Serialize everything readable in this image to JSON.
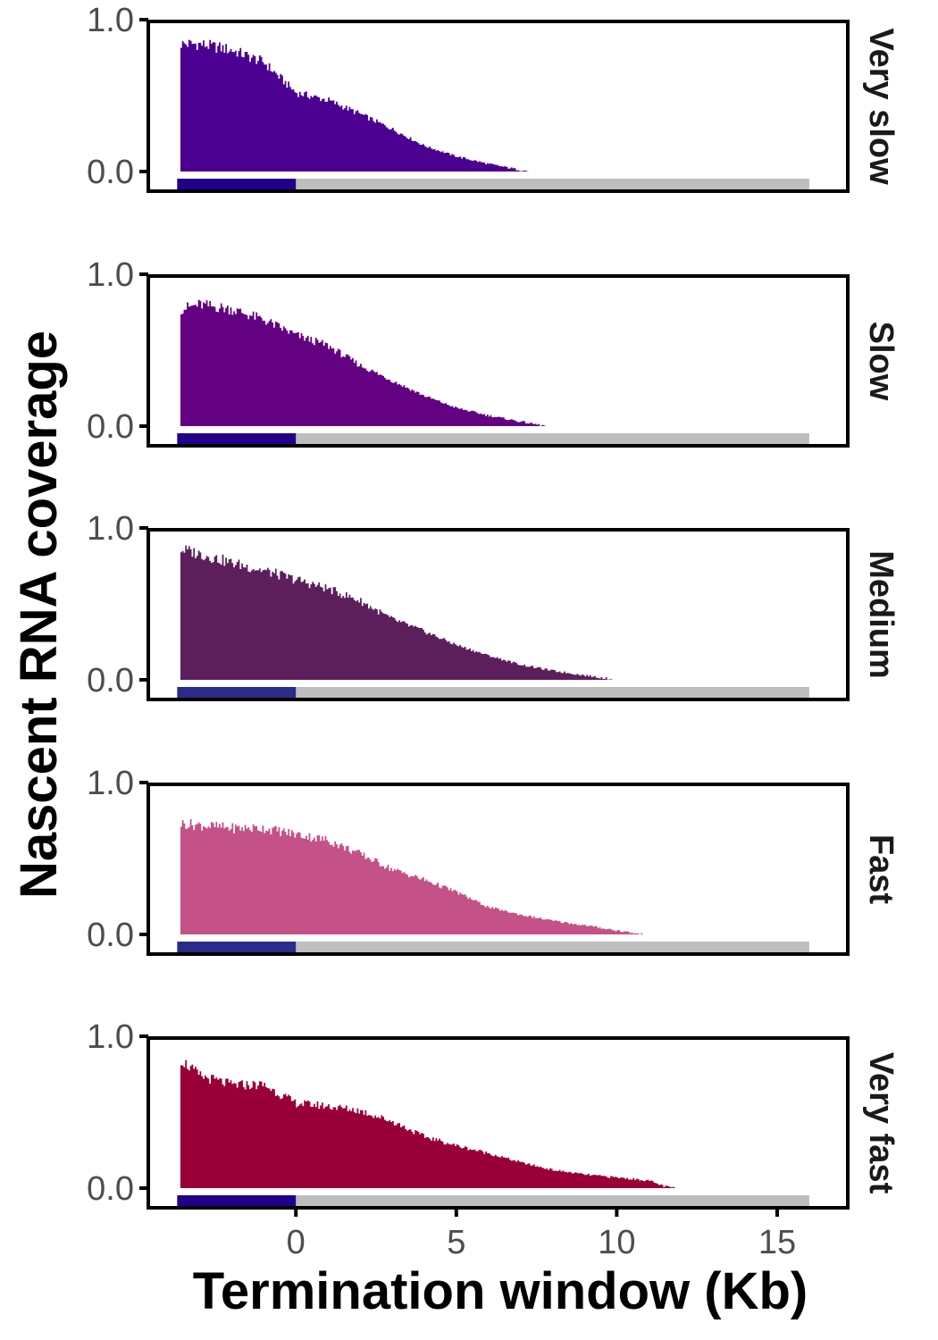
{
  "chart_data": {
    "type": "area",
    "title": "",
    "xlabel": "Termination window (Kb)",
    "ylabel": "Nascent RNA coverage",
    "xlim": [
      -4.6,
      17.2
    ],
    "ylim": [
      -0.12,
      1.0
    ],
    "x_ticks": [
      0,
      5,
      10,
      15
    ],
    "x_tick_labels": [
      "0",
      "5",
      "10",
      "15"
    ],
    "y_ticks": [
      0,
      1
    ],
    "y_tick_labels": [
      "0.0",
      "1.0"
    ],
    "grid": false,
    "legend": "none",
    "gene_body_bar": {
      "gene_region": [
        -3.7,
        0
      ],
      "termination_region": [
        0,
        16
      ],
      "termination_color": "#bebebe"
    },
    "panels": [
      {
        "label": "Very slow",
        "color": "#4b0092",
        "gene_bar_color": "#21008a",
        "x": [
          -3.6,
          -3.0,
          -2.0,
          -1.0,
          0.0,
          1.0,
          2.0,
          3.0,
          4.0,
          5.0,
          6.0,
          7.0,
          7.3
        ],
        "y": [
          0.84,
          0.84,
          0.8,
          0.72,
          0.52,
          0.47,
          0.38,
          0.28,
          0.17,
          0.1,
          0.05,
          0.01,
          0.0
        ]
      },
      {
        "label": "Slow",
        "color": "#640082",
        "gene_bar_color": "#21008a",
        "x": [
          -3.6,
          -3.0,
          -2.0,
          -1.0,
          0.0,
          1.0,
          2.0,
          3.0,
          4.0,
          5.0,
          6.0,
          7.0,
          7.8
        ],
        "y": [
          0.77,
          0.8,
          0.77,
          0.7,
          0.6,
          0.53,
          0.4,
          0.3,
          0.2,
          0.12,
          0.07,
          0.03,
          0.0
        ]
      },
      {
        "label": "Medium",
        "color": "#5c1f5c",
        "gene_bar_color": "#2b2b8c",
        "x": [
          -3.6,
          -3.0,
          -2.0,
          -1.0,
          0.0,
          1.0,
          2.0,
          3.0,
          4.0,
          5.0,
          6.0,
          7.0,
          8.0,
          9.0,
          10.0
        ],
        "y": [
          0.86,
          0.83,
          0.77,
          0.72,
          0.66,
          0.6,
          0.52,
          0.4,
          0.32,
          0.23,
          0.16,
          0.1,
          0.06,
          0.03,
          0.0
        ]
      },
      {
        "label": "Fast",
        "color": "#c55189",
        "gene_bar_color": "#2b2b8c",
        "x": [
          -3.6,
          -3.0,
          -2.0,
          -1.0,
          0.0,
          1.0,
          2.0,
          3.0,
          4.0,
          5.0,
          6.0,
          7.0,
          8.0,
          9.0,
          10.2,
          10.8
        ],
        "y": [
          0.73,
          0.72,
          0.7,
          0.7,
          0.66,
          0.62,
          0.53,
          0.43,
          0.36,
          0.28,
          0.18,
          0.13,
          0.09,
          0.06,
          0.02,
          0.0
        ]
      },
      {
        "label": "Very fast",
        "color": "#990038",
        "gene_bar_color": "#21008a",
        "x": [
          -3.6,
          -3.0,
          -2.0,
          -1.0,
          0.0,
          1.0,
          2.0,
          3.0,
          4.0,
          5.0,
          6.0,
          7.0,
          8.0,
          9.0,
          10.0,
          11.0,
          11.5,
          11.9
        ],
        "y": [
          0.85,
          0.74,
          0.68,
          0.68,
          0.56,
          0.54,
          0.51,
          0.44,
          0.34,
          0.28,
          0.23,
          0.17,
          0.12,
          0.09,
          0.07,
          0.05,
          0.01,
          0.0
        ]
      }
    ]
  }
}
